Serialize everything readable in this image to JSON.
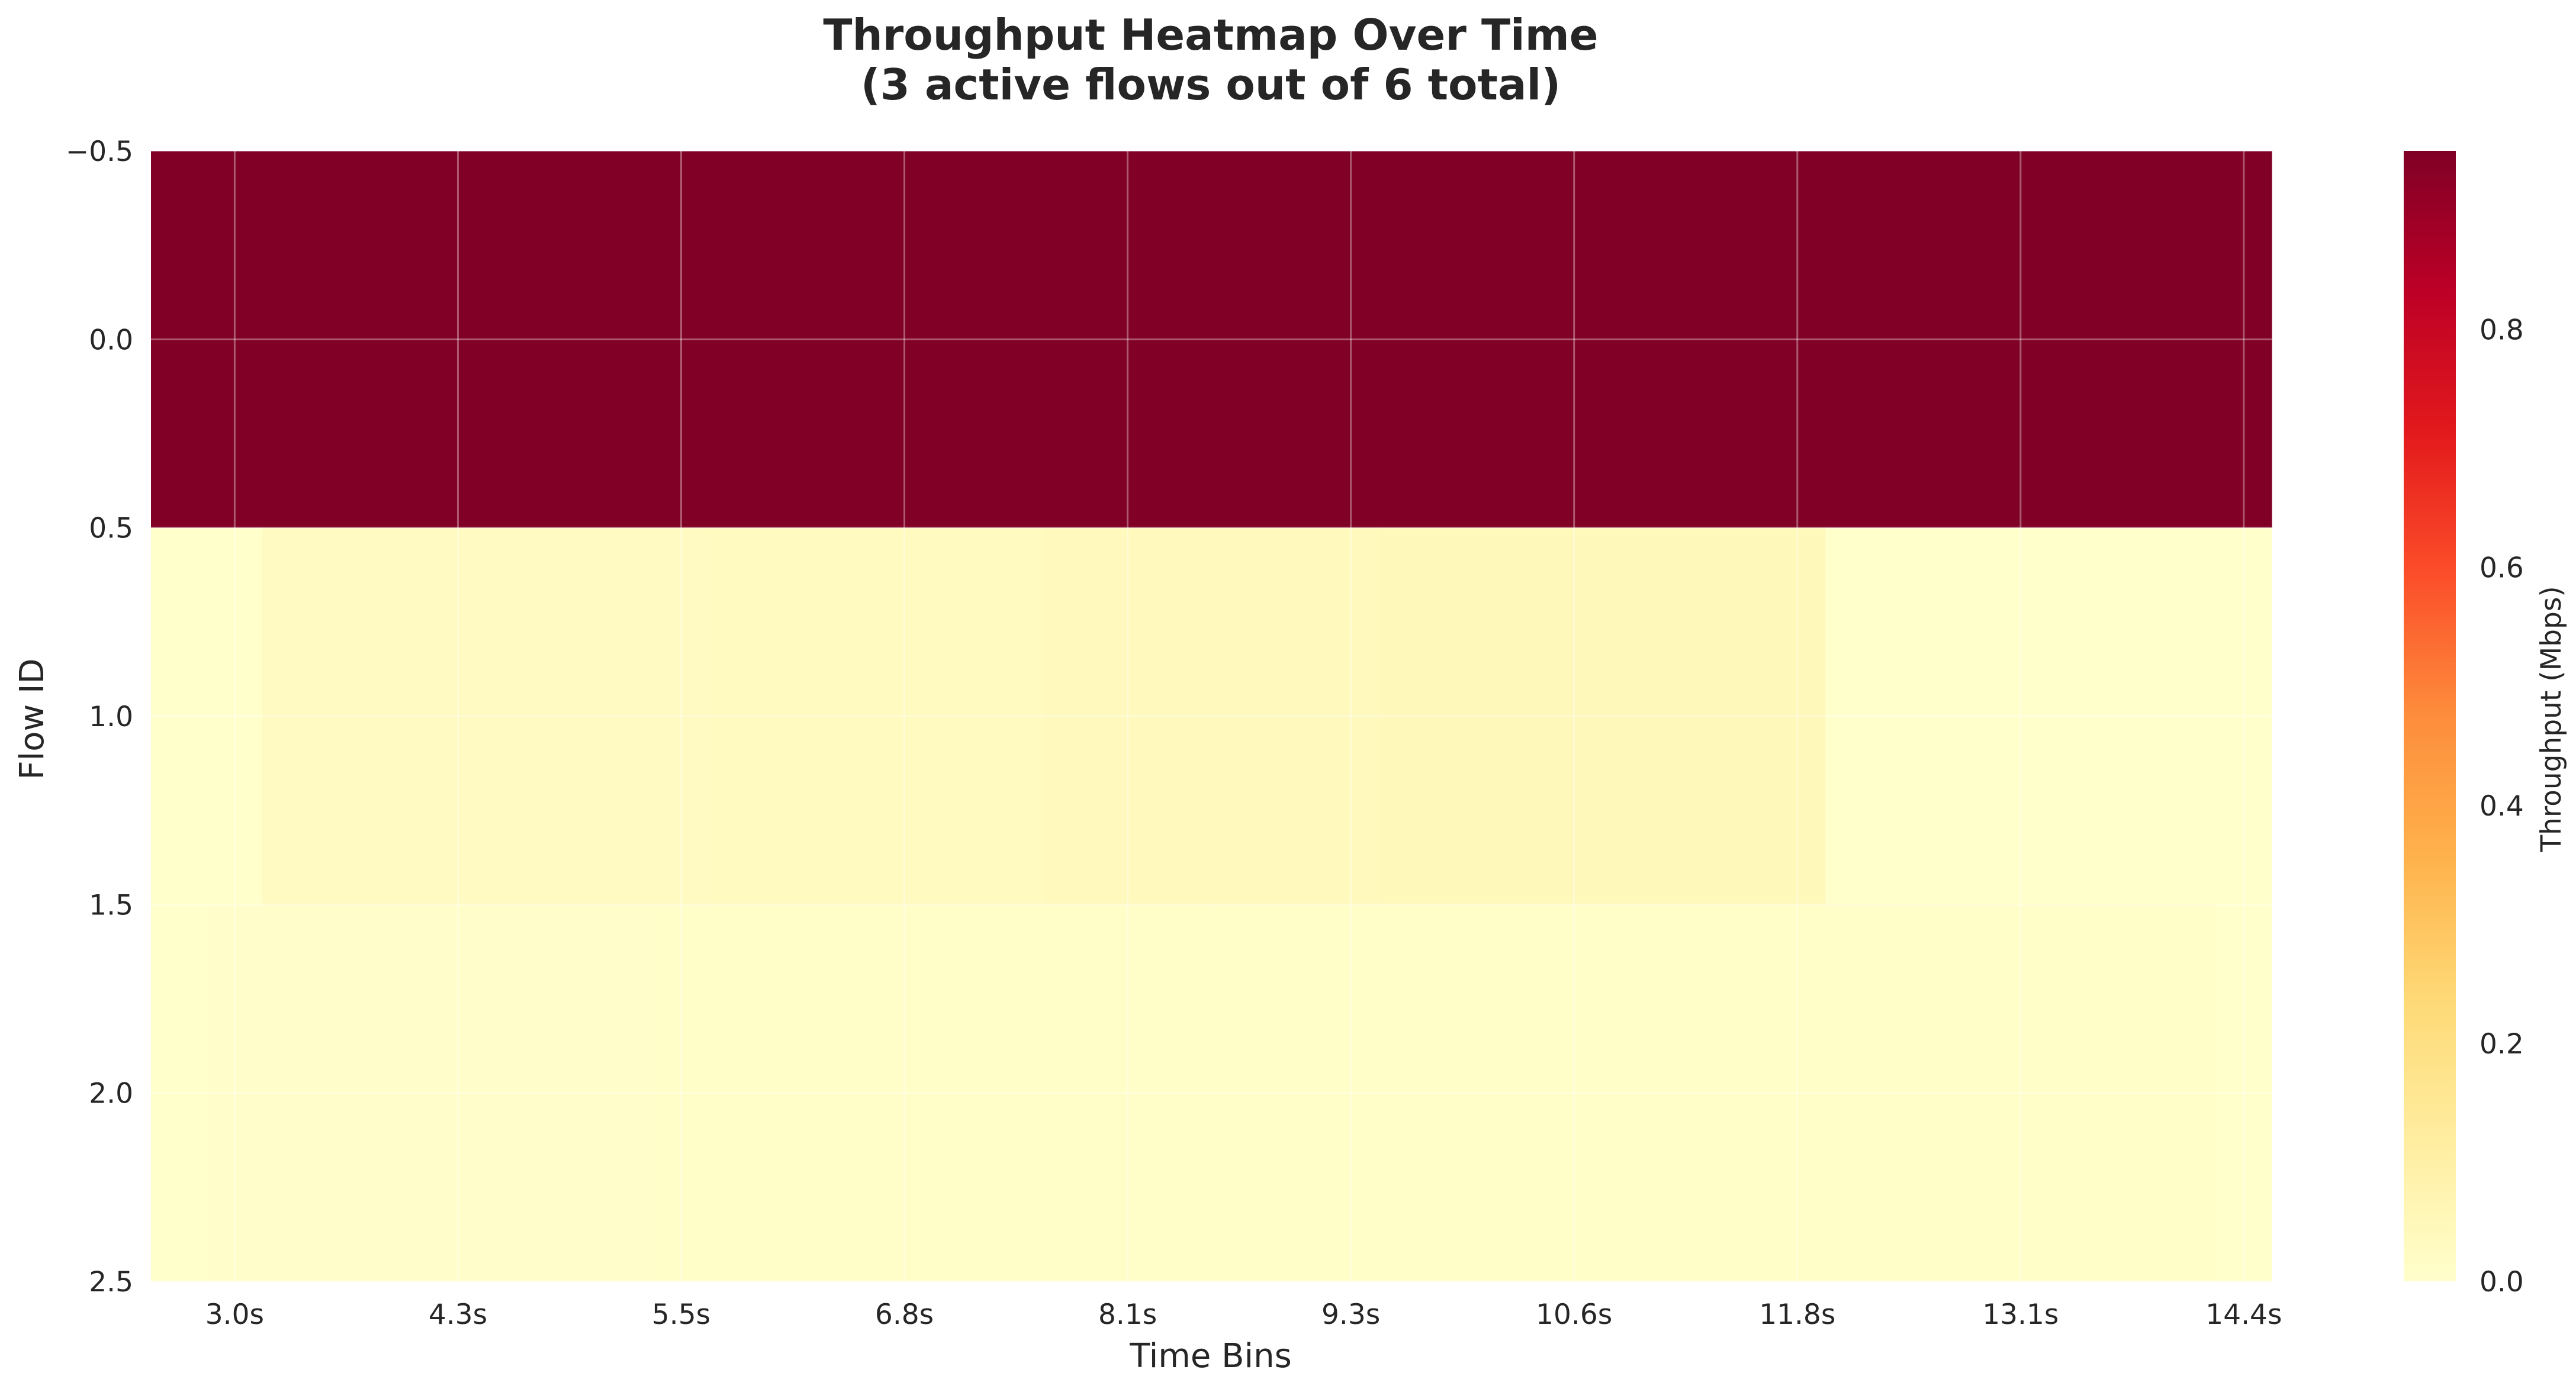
{
  "chart_data": {
    "type": "heatmap",
    "title_line1": "Throughput Heatmap Over Time",
    "title_line2": "(3 active flows out of 6 total)",
    "xlabel": "Time Bins",
    "ylabel": "Flow ID",
    "x_categories": [
      "3.0s",
      "4.3s",
      "5.5s",
      "6.8s",
      "8.1s",
      "9.3s",
      "10.6s",
      "11.8s",
      "13.1s",
      "14.4s"
    ],
    "y_ticks": [
      "−0.5",
      "0.0",
      "0.5",
      "1.0",
      "1.5",
      "2.0",
      "2.5"
    ],
    "y_tick_values": [
      -0.5,
      0.0,
      0.5,
      1.0,
      1.5,
      2.0,
      2.5
    ],
    "ylim": [
      2.5,
      -0.5
    ],
    "n_time_bins": 38,
    "rows": [
      {
        "flow": 0,
        "segments": [
          {
            "from_bin": 0,
            "to_bin": 38,
            "value": 0.95
          }
        ]
      },
      {
        "flow": 1,
        "segments": [
          {
            "from_bin": 0,
            "to_bin": 2,
            "value": 0.0
          },
          {
            "from_bin": 2,
            "to_bin": 10,
            "value": 0.03
          },
          {
            "from_bin": 10,
            "to_bin": 16,
            "value": 0.035
          },
          {
            "from_bin": 16,
            "to_bin": 22,
            "value": 0.04
          },
          {
            "from_bin": 22,
            "to_bin": 30,
            "value": 0.045
          },
          {
            "from_bin": 30,
            "to_bin": 38,
            "value": 0.0
          }
        ]
      },
      {
        "flow": 2,
        "segments": [
          {
            "from_bin": 0,
            "to_bin": 1,
            "value": 0.0
          },
          {
            "from_bin": 1,
            "to_bin": 9,
            "value": 0.005
          },
          {
            "from_bin": 9,
            "to_bin": 19,
            "value": 0.01
          },
          {
            "from_bin": 19,
            "to_bin": 25,
            "value": 0.008
          },
          {
            "from_bin": 25,
            "to_bin": 31,
            "value": 0.012
          },
          {
            "from_bin": 31,
            "to_bin": 37,
            "value": 0.01
          },
          {
            "from_bin": 37,
            "to_bin": 38,
            "value": 0.0
          }
        ]
      }
    ],
    "colorbar": {
      "label": "Throughput (Mbps)",
      "colormap": "YlOrRd",
      "range": [
        0.0,
        0.95
      ],
      "ticks": [
        "0.0",
        "0.2",
        "0.4",
        "0.6",
        "0.8"
      ],
      "tick_values": [
        0.0,
        0.2,
        0.4,
        0.6,
        0.8
      ]
    },
    "grid": true,
    "colors": [
      "#ffffcc",
      "#ffeda0",
      "#fed976",
      "#feb24c",
      "#fd8d3c",
      "#fc4e2a",
      "#e31a1c",
      "#bd0026",
      "#800026"
    ]
  }
}
